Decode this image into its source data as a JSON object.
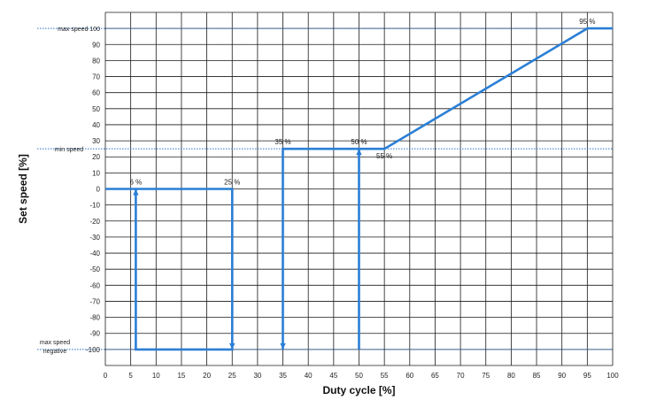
{
  "chart_data": {
    "type": "line",
    "title": "",
    "xlabel": "Duty cycle [%]",
    "ylabel": "Set speed  [%]",
    "xlim": [
      0,
      100
    ],
    "ylim": [
      -110,
      110
    ],
    "x_ticks": [
      0,
      5,
      10,
      15,
      20,
      25,
      30,
      35,
      40,
      45,
      50,
      55,
      60,
      65,
      70,
      75,
      80,
      85,
      90,
      95,
      100
    ],
    "y_ticks": [
      100,
      90,
      80,
      70,
      60,
      50,
      40,
      30,
      20,
      10,
      0,
      -10,
      -20,
      -30,
      -40,
      -50,
      -60,
      -70,
      -80,
      -90,
      -100
    ],
    "grid": true,
    "line_color": "#2a7fd6",
    "series": [
      {
        "points": [
          [
            0,
            0
          ],
          [
            25,
            0
          ],
          [
            25,
            -100
          ],
          [
            6,
            -100
          ],
          [
            6,
            0
          ]
        ]
      },
      {
        "points": [
          [
            35,
            -100
          ],
          [
            35,
            25
          ],
          [
            55,
            25
          ],
          [
            95,
            100
          ],
          [
            100,
            100
          ]
        ]
      },
      {
        "points": [
          [
            50,
            -100
          ],
          [
            50,
            25
          ]
        ]
      }
    ],
    "arrows": [
      {
        "at": [
          25,
          -100
        ],
        "direction": "down"
      },
      {
        "at": [
          6,
          0
        ],
        "direction": "up"
      },
      {
        "at": [
          35,
          -100
        ],
        "direction": "down"
      },
      {
        "at": [
          50,
          25
        ],
        "direction": "up"
      }
    ],
    "reference_lines": [
      {
        "y": 100,
        "label": "max speed 100",
        "label_text": "max speed",
        "color": "#2a72c8"
      },
      {
        "y": 25,
        "label": "min speed",
        "color": "#2a72c8"
      },
      {
        "y": -100,
        "label_lines": [
          "max speed",
          "negative"
        ],
        "color": "#2a72c8"
      }
    ],
    "annotations": [
      {
        "text": "95 %",
        "x": 95,
        "y": 100,
        "position": "above"
      },
      {
        "text": "35 %",
        "x": 35,
        "y": 25,
        "position": "above"
      },
      {
        "text": "50 %",
        "x": 50,
        "y": 25,
        "position": "above"
      },
      {
        "text": "55 %",
        "x": 55,
        "y": 25,
        "position": "below"
      },
      {
        "text": "6 %",
        "x": 6,
        "y": 0,
        "position": "above"
      },
      {
        "text": "25 %",
        "x": 25,
        "y": 0,
        "position": "above"
      }
    ]
  }
}
